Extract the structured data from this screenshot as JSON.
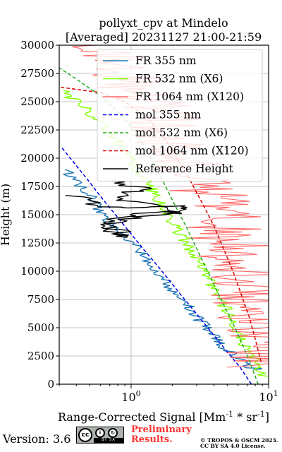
{
  "chart_data": {
    "type": "line",
    "title_line1": "pollyxt_cpv at Mindelo",
    "title_line2": "[Averaged] 20231127 21:00-21:59",
    "xlabel": "Range-Corrected Signal [Mm^{-1}*sr^{-1}]",
    "ylabel": "Height (m)",
    "x_scale": "log",
    "xlim": [
      0.3,
      10
    ],
    "ylim": [
      0,
      30000
    ],
    "grid": true,
    "x_tick_labels": [
      {
        "value": 1,
        "label": "10^0"
      },
      {
        "value": 10,
        "label": "10^1"
      }
    ],
    "y_tick_labels": [
      "0",
      "2500",
      "5000",
      "7500",
      "10000",
      "12500",
      "15000",
      "17500",
      "20000",
      "22500",
      "25000",
      "27500",
      "30000"
    ],
    "y_ticks": [
      0,
      2500,
      5000,
      7500,
      10000,
      12500,
      15000,
      17500,
      20000,
      22500,
      25000,
      27500,
      30000
    ],
    "legend_position": "top-right",
    "series": [
      {
        "name": "FR 355 nm",
        "color": "#1f77b4",
        "style": "solid",
        "noise": 0.05,
        "points": [
          [
            8.5,
            1300
          ],
          [
            7.5,
            1500
          ],
          [
            6.0,
            2300
          ],
          [
            4.5,
            3500
          ],
          [
            3.5,
            5000
          ],
          [
            2.7,
            6600
          ],
          [
            2.0,
            8300
          ],
          [
            1.55,
            10000
          ],
          [
            1.25,
            11300
          ],
          [
            1.0,
            12500
          ],
          [
            0.8,
            13700
          ],
          [
            0.66,
            14800
          ],
          [
            0.56,
            15800
          ],
          [
            0.48,
            17000
          ],
          [
            0.42,
            17700
          ],
          [
            0.38,
            18300
          ],
          [
            0.33,
            19000
          ]
        ]
      },
      {
        "name": "FR 532 nm (X6)",
        "color": "#7fff00",
        "style": "solid",
        "noise": 0.05,
        "points": [
          [
            9.0,
            700
          ],
          [
            8.2,
            1500
          ],
          [
            7.2,
            2800
          ],
          [
            6.2,
            4400
          ],
          [
            5.2,
            6100
          ],
          [
            4.3,
            7800
          ],
          [
            3.6,
            9500
          ],
          [
            3.0,
            11000
          ],
          [
            2.5,
            12600
          ],
          [
            2.1,
            14000
          ],
          [
            1.75,
            15500
          ],
          [
            1.45,
            17000
          ],
          [
            1.2,
            18500
          ],
          [
            1.0,
            20000
          ],
          [
            0.85,
            21200
          ],
          [
            0.72,
            22200
          ],
          [
            0.6,
            23200
          ],
          [
            0.5,
            24000
          ],
          [
            0.42,
            24800
          ],
          [
            0.35,
            25500
          ],
          [
            0.32,
            26000
          ]
        ]
      },
      {
        "name": "FR 1064 nm (X120)",
        "color": "#ff6666",
        "style": "solid",
        "noise": 0.3,
        "points": [
          [
            9.5,
            1500
          ],
          [
            9.0,
            2500
          ],
          [
            8.5,
            4000
          ],
          [
            7.8,
            6000
          ],
          [
            7.0,
            8000
          ],
          [
            6.3,
            10000
          ],
          [
            5.6,
            12000
          ],
          [
            4.8,
            14000
          ],
          [
            4.2,
            15500
          ],
          [
            3.5,
            17000
          ],
          [
            3.0,
            18500
          ],
          [
            2.5,
            20000
          ],
          [
            2.1,
            21500
          ],
          [
            1.7,
            23000
          ],
          [
            1.4,
            24500
          ],
          [
            1.1,
            26000
          ],
          [
            0.9,
            27500
          ],
          [
            0.7,
            28800
          ],
          [
            0.55,
            30000
          ]
        ]
      },
      {
        "name": "mol 355 nm",
        "color": "#0000ee",
        "style": "dashed",
        "noise": 0,
        "points": [
          [
            7.5,
            0
          ],
          [
            6.2,
            1500
          ],
          [
            4.9,
            3000
          ],
          [
            3.9,
            4500
          ],
          [
            3.1,
            6000
          ],
          [
            2.45,
            7500
          ],
          [
            1.95,
            9000
          ],
          [
            1.55,
            10500
          ],
          [
            1.22,
            12000
          ],
          [
            0.97,
            13500
          ],
          [
            0.77,
            15000
          ],
          [
            0.61,
            16500
          ],
          [
            0.49,
            18000
          ],
          [
            0.39,
            19500
          ],
          [
            0.31,
            21000
          ]
        ]
      },
      {
        "name": "mol 532 nm (X6)",
        "color": "#22aa22",
        "style": "dashed",
        "noise": 0,
        "points": [
          [
            8.4,
            0
          ],
          [
            7.3,
            2000
          ],
          [
            6.2,
            4000
          ],
          [
            5.2,
            6000
          ],
          [
            4.3,
            8000
          ],
          [
            3.6,
            10000
          ],
          [
            3.0,
            12000
          ],
          [
            2.5,
            14000
          ],
          [
            2.05,
            16000
          ],
          [
            1.7,
            18000
          ],
          [
            1.4,
            20000
          ],
          [
            1.12,
            22000
          ],
          [
            0.9,
            23500
          ],
          [
            0.6,
            25500
          ],
          [
            0.4,
            27000
          ],
          [
            0.3,
            28000
          ]
        ]
      },
      {
        "name": "mol 1064 nm (X120)",
        "color": "#dd0000",
        "style": "dashed",
        "noise": 0,
        "points": [
          [
            8.8,
            2000
          ],
          [
            8.0,
            4000
          ],
          [
            7.2,
            6000
          ],
          [
            6.3,
            8000
          ],
          [
            5.5,
            10000
          ],
          [
            4.7,
            12000
          ],
          [
            4.0,
            14000
          ],
          [
            3.3,
            16000
          ],
          [
            2.7,
            18000
          ],
          [
            2.15,
            20000
          ],
          [
            1.7,
            22000
          ],
          [
            1.3,
            23600
          ],
          [
            0.9,
            25000
          ],
          [
            0.6,
            25800
          ],
          [
            0.3,
            26300
          ]
        ]
      },
      {
        "name": "Reference Height",
        "color": "#000000",
        "style": "solid",
        "noise": 0.08,
        "points": [
          [
            0.4,
            16700
          ],
          [
            0.48,
            16200
          ],
          [
            0.62,
            15700
          ],
          [
            1.1,
            15600
          ],
          [
            2.1,
            15800
          ],
          [
            2.6,
            15500
          ],
          [
            1.5,
            15000
          ],
          [
            0.9,
            14600
          ],
          [
            0.6,
            14000
          ],
          [
            0.75,
            13400
          ],
          [
            0.9,
            13000
          ],
          [
            0.85,
            13500
          ],
          [
            0.6,
            14300
          ],
          [
            0.9,
            14900
          ],
          [
            1.6,
            15300
          ],
          [
            2.2,
            15100
          ],
          [
            1.3,
            15900
          ],
          [
            0.8,
            16400
          ],
          [
            1.0,
            17000
          ],
          [
            1.5,
            17300
          ],
          [
            0.9,
            17600
          ],
          [
            0.72,
            18000
          ]
        ]
      }
    ]
  },
  "footer": {
    "version_label": "Version: 3.6",
    "cc_text": "BY    SA",
    "preliminary_line1": "Preliminary",
    "preliminary_line2": "Results.",
    "copyright_line1": "© TROPOS & OSCM 2023.",
    "copyright_line2": "CC BY SA 4.0 License."
  }
}
